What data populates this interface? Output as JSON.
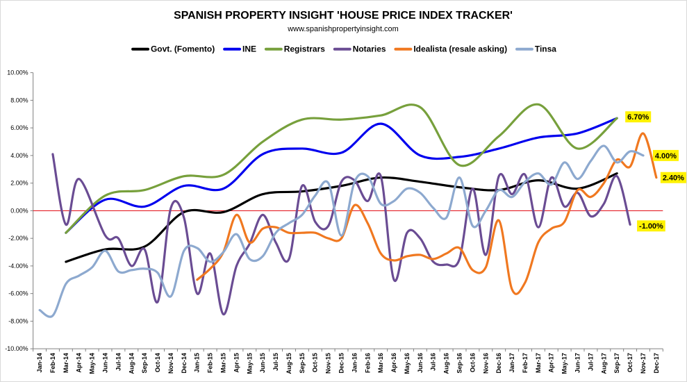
{
  "chart_data": {
    "type": "line",
    "title": "SPANISH PROPERTY INSIGHT 'HOUSE PRICE INDEX TRACKER'",
    "subtitle": "www.spanishpropertyinsight.com",
    "ylim": [
      -10,
      10
    ],
    "yticks": [
      -10,
      -8,
      -6,
      -4,
      -2,
      0,
      2,
      4,
      6,
      8,
      10
    ],
    "ytick_labels": [
      "-10.00%",
      "-8.00%",
      "-6.00%",
      "-4.00%",
      "-2.00%",
      "0.00%",
      "2.00%",
      "4.00%",
      "6.00%",
      "8.00%",
      "10.00%"
    ],
    "grid": false,
    "legend_position": "top",
    "zero_line_color": "#e0000a",
    "categories": [
      "Jan-14",
      "Feb-14",
      "Mar-14",
      "Apr-14",
      "May-14",
      "Jun-14",
      "Jul-14",
      "Aug-14",
      "Sep-14",
      "Oct-14",
      "Nov-14",
      "Dec-14",
      "Jan-15",
      "Feb-15",
      "Mar-15",
      "Apr-15",
      "May-15",
      "Jun-15",
      "Jul-15",
      "Aug-15",
      "Sep-15",
      "Oct-15",
      "Nov-15",
      "Dec-15",
      "Jan-16",
      "Feb-16",
      "Mar-16",
      "Apr-16",
      "May-16",
      "Jun-16",
      "Jul-16",
      "Aug-16",
      "Sep-16",
      "Oct-16",
      "Nov-16",
      "Dec-16",
      "Jan-17",
      "Feb-17",
      "Mar-17",
      "Apr-17",
      "May-17",
      "Jun-17",
      "Jul-17",
      "Aug-17",
      "Sep-17",
      "Oct-17",
      "Nov-17",
      "Dec-17"
    ],
    "series": [
      {
        "name": "Govt. (Fomento)",
        "color": "#000000",
        "values": [
          null,
          null,
          -3.7,
          null,
          null,
          -2.8,
          null,
          null,
          -2.6,
          null,
          null,
          -0.1,
          null,
          null,
          -0.1,
          null,
          null,
          1.2,
          null,
          null,
          1.4,
          null,
          null,
          1.8,
          null,
          null,
          2.4,
          null,
          null,
          2.1,
          null,
          null,
          1.7,
          null,
          null,
          1.5,
          null,
          null,
          2.2,
          null,
          null,
          1.6,
          null,
          null,
          2.7,
          null,
          null,
          null
        ]
      },
      {
        "name": "INE",
        "color": "#0000ee",
        "values": [
          null,
          null,
          -1.6,
          null,
          null,
          0.8,
          null,
          null,
          0.3,
          null,
          null,
          1.8,
          null,
          null,
          1.6,
          null,
          null,
          4.1,
          null,
          null,
          4.5,
          null,
          null,
          4.2,
          null,
          null,
          6.3,
          null,
          null,
          4.0,
          null,
          null,
          3.9,
          null,
          null,
          4.5,
          null,
          null,
          5.3,
          null,
          null,
          5.6,
          null,
          null,
          6.7,
          null,
          null,
          null
        ]
      },
      {
        "name": "Registrars",
        "color": "#77a03c",
        "values": [
          null,
          null,
          -1.6,
          null,
          null,
          1.1,
          null,
          null,
          1.5,
          null,
          null,
          2.5,
          null,
          null,
          2.6,
          null,
          null,
          5.0,
          null,
          null,
          6.6,
          null,
          null,
          6.6,
          null,
          null,
          6.9,
          null,
          null,
          7.5,
          null,
          null,
          3.3,
          null,
          null,
          5.4,
          null,
          null,
          7.7,
          null,
          null,
          4.5,
          null,
          null,
          6.7,
          null,
          null,
          null
        ]
      },
      {
        "name": "Notaries",
        "color": "#6a4c93",
        "values": [
          null,
          4.1,
          -1.0,
          2.3,
          null,
          -1.8,
          -2.0,
          -4.0,
          -2.8,
          -6.6,
          0.2,
          -0.5,
          -6.0,
          -3.1,
          -7.5,
          -4.0,
          -2.4,
          -0.3,
          -2.3,
          -3.5,
          1.8,
          -0.8,
          -1.1,
          2.1,
          2.2,
          0.7,
          2.5,
          -5.0,
          -1.6,
          -2.0,
          -3.7,
          -3.9,
          -3.5,
          1.6,
          -3.2,
          2.5,
          1.2,
          2.6,
          -1.2,
          2.4,
          0.3,
          1.3,
          -0.4,
          0.5,
          2.5,
          -1.0,
          null,
          null
        ]
      },
      {
        "name": "Idealista (resale asking)",
        "color": "#f07820",
        "values": [
          null,
          null,
          null,
          null,
          null,
          null,
          null,
          null,
          null,
          null,
          null,
          null,
          -5.0,
          -4.2,
          -3.0,
          -0.3,
          -2.3,
          -1.3,
          -1.2,
          -1.6,
          -1.6,
          -1.6,
          -2.0,
          -2.0,
          0.4,
          -0.9,
          -3.1,
          -3.6,
          -3.3,
          -3.2,
          -3.5,
          -3.1,
          -2.7,
          -4.3,
          -4.1,
          -0.7,
          -5.7,
          -5.2,
          -2.3,
          -1.3,
          -0.8,
          1.5,
          1.0,
          2.0,
          3.7,
          3.2,
          5.6,
          2.4
        ]
      },
      {
        "name": "Tinsa",
        "color": "#8da9cf",
        "values": [
          -7.2,
          -7.6,
          -5.3,
          -4.7,
          -4.1,
          -2.9,
          -4.4,
          -4.3,
          -4.2,
          -4.5,
          -6.2,
          -2.9,
          -2.7,
          -3.7,
          -3.0,
          -1.7,
          -3.5,
          -3.3,
          -1.6,
          -0.9,
          -0.3,
          1.1,
          2.0,
          -1.8,
          2.1,
          2.5,
          0.5,
          0.7,
          1.6,
          1.3,
          0.2,
          -0.5,
          2.4,
          -1.1,
          0.0,
          1.5,
          1.0,
          2.1,
          2.7,
          1.9,
          3.5,
          2.3,
          3.6,
          4.7,
          3.5,
          4.3,
          4.0,
          null
        ]
      }
    ],
    "data_labels": [
      {
        "series": "Registrars",
        "category": "Sep-17",
        "text": "6.70%"
      },
      {
        "series": "Tinsa",
        "category": "Nov-17",
        "text": "4.00%"
      },
      {
        "series": "Idealista (resale asking)",
        "category": "Dec-17",
        "text": "2.40%"
      },
      {
        "series": "Notaries",
        "category": "Oct-17",
        "text": "-1.00%"
      }
    ],
    "data_label_bg": "#fff200"
  }
}
